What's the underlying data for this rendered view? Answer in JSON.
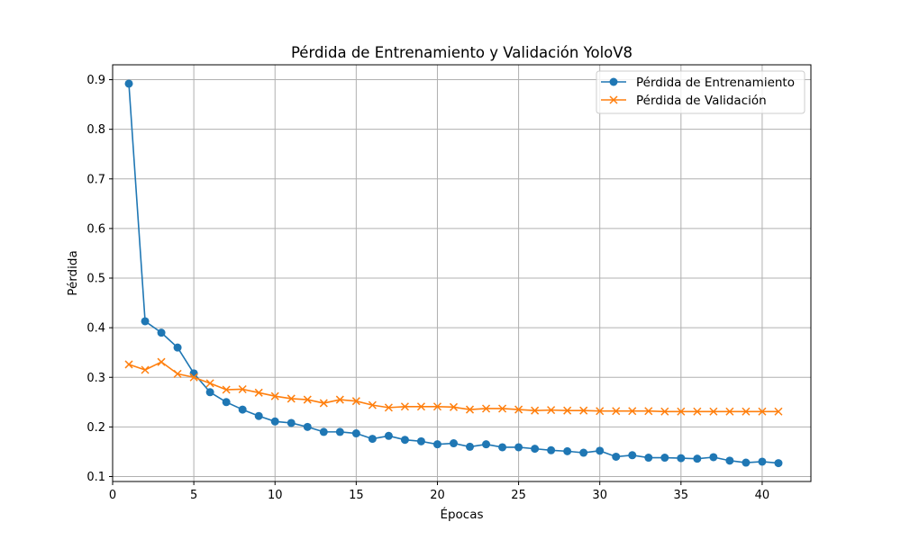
{
  "chart_data": {
    "type": "line",
    "title": "Pérdida de Entrenamiento y Validación YoloV8",
    "xlabel": "Épocas",
    "ylabel": "Pérdida",
    "xlim": [
      0,
      43
    ],
    "ylim": [
      0.09,
      0.93
    ],
    "xticks": [
      "0",
      "5",
      "10",
      "15",
      "20",
      "25",
      "30",
      "35",
      "40"
    ],
    "yticks": [
      "0.1",
      "0.2",
      "0.3",
      "0.4",
      "0.5",
      "0.6",
      "0.7",
      "0.8",
      "0.9"
    ],
    "grid": true,
    "legend_position": "top-right",
    "x": [
      1,
      2,
      3,
      4,
      5,
      6,
      7,
      8,
      9,
      10,
      11,
      12,
      13,
      14,
      15,
      16,
      17,
      18,
      19,
      20,
      21,
      22,
      23,
      24,
      25,
      26,
      27,
      28,
      29,
      30,
      31,
      32,
      33,
      34,
      35,
      36,
      37,
      38,
      39,
      40,
      41
    ],
    "series": [
      {
        "name": "Pérdida de Entrenamiento",
        "color": "#1f77b4",
        "marker": "circle",
        "values": [
          0.892,
          0.413,
          0.39,
          0.36,
          0.308,
          0.27,
          0.25,
          0.235,
          0.222,
          0.211,
          0.208,
          0.2,
          0.19,
          0.19,
          0.187,
          0.176,
          0.182,
          0.174,
          0.171,
          0.165,
          0.167,
          0.16,
          0.165,
          0.159,
          0.159,
          0.156,
          0.153,
          0.151,
          0.148,
          0.152,
          0.14,
          0.143,
          0.138,
          0.138,
          0.137,
          0.136,
          0.139,
          0.132,
          0.128,
          0.13,
          0.127
        ]
      },
      {
        "name": "Pérdida de Validación",
        "color": "#ff7f0e",
        "marker": "x",
        "values": [
          0.326,
          0.315,
          0.331,
          0.307,
          0.3,
          0.288,
          0.275,
          0.276,
          0.269,
          0.262,
          0.257,
          0.255,
          0.248,
          0.255,
          0.252,
          0.244,
          0.239,
          0.241,
          0.241,
          0.241,
          0.24,
          0.235,
          0.237,
          0.237,
          0.235,
          0.233,
          0.234,
          0.233,
          0.233,
          0.232,
          0.232,
          0.232,
          0.232,
          0.231,
          0.231,
          0.231,
          0.231,
          0.231,
          0.231,
          0.231,
          0.231
        ]
      }
    ]
  }
}
